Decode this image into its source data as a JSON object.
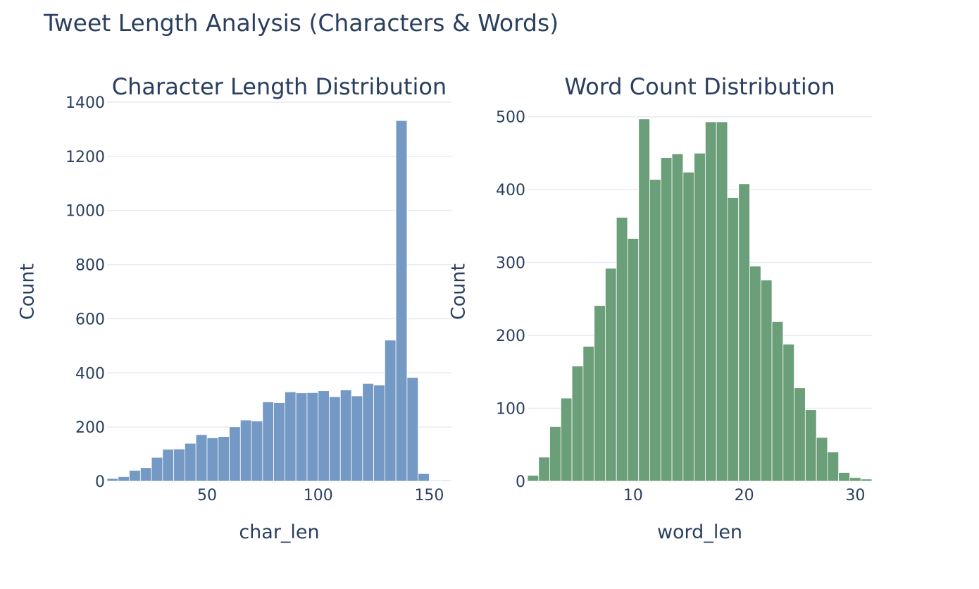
{
  "title": "Tweet Length Analysis (Characters & Words)",
  "chart_data": [
    {
      "type": "bar",
      "subplot_title": "Character Length Distribution",
      "xlabel": "char_len",
      "ylabel": "Count",
      "xlim": [
        5,
        160
      ],
      "ylim": [
        0,
        1400
      ],
      "xticks": [
        50,
        100,
        150
      ],
      "yticks": [
        0,
        200,
        400,
        600,
        800,
        1000,
        1200,
        1400
      ],
      "bin_start": 5,
      "bin_width": 5,
      "values": [
        10,
        17,
        40,
        50,
        88,
        118,
        119,
        140,
        172,
        160,
        165,
        201,
        226,
        222,
        293,
        290,
        330,
        326,
        327,
        334,
        312,
        337,
        315,
        361,
        355,
        521,
        1332,
        383,
        28,
        3,
        3
      ],
      "color": "#7399c4",
      "grid": true
    },
    {
      "type": "bar",
      "subplot_title": "Word Count Distribution",
      "xlabel": "word_len",
      "ylabel": "Count",
      "xlim": [
        0.5,
        31.5
      ],
      "ylim": [
        0,
        520
      ],
      "xticks": [
        10,
        20,
        30
      ],
      "yticks": [
        0,
        100,
        200,
        300,
        400,
        500
      ],
      "bin_start": 0.5,
      "bin_width": 1,
      "values": [
        8,
        33,
        75,
        114,
        158,
        185,
        241,
        292,
        362,
        333,
        497,
        414,
        444,
        449,
        424,
        450,
        493,
        493,
        389,
        408,
        295,
        276,
        219,
        188,
        128,
        98,
        60,
        40,
        12,
        5,
        3
      ],
      "color": "#6b9f79",
      "grid": true
    }
  ]
}
